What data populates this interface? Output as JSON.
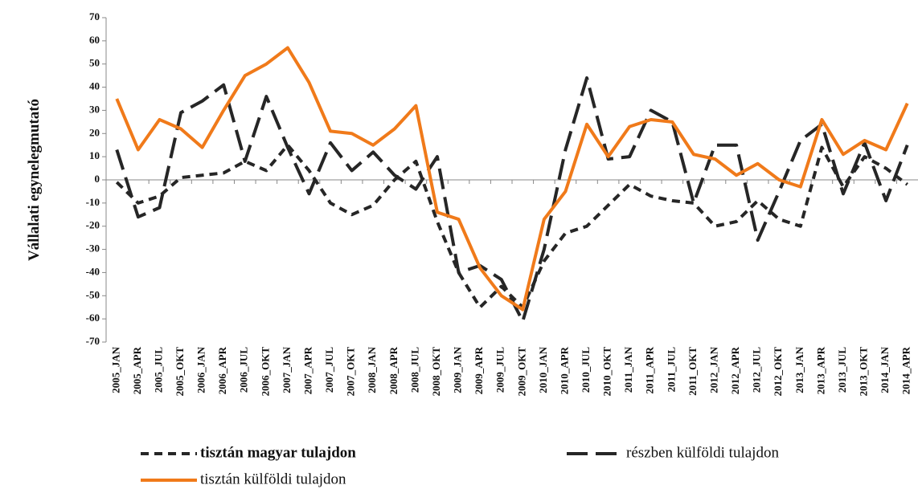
{
  "chart_data": {
    "type": "line",
    "y_label": "Vállalati egynelegmutató",
    "categories": [
      "2005_JAN",
      "2005_APR",
      "2005_JUL",
      "2005_OKT",
      "2006_JAN",
      "2006_APR",
      "2006_JUL",
      "2006_OKT",
      "2007_JAN",
      "2007_APR",
      "2007_JUL",
      "2007_OKT",
      "2008_JAN",
      "2008_APR",
      "2008_JUL",
      "2008_OKT",
      "2009_JAN",
      "2009_APR",
      "2009_JUL",
      "2009_OKT",
      "2010_JAN",
      "2010_APR",
      "2010_JUL",
      "2010_OKT",
      "2011_JAN",
      "2011_APR",
      "2011_JUL",
      "2011_OKT",
      "2012_JAN",
      "2012_APR",
      "2012_JUL",
      "2012_OKT",
      "2013_JAN",
      "2013_APR",
      "2013_JUL",
      "2013_OKT",
      "2014_JAN",
      "2014_APR"
    ],
    "series": [
      {
        "name": "tisztán magyar tulajdon",
        "color": "#262626",
        "values": [
          -1,
          -10,
          -7,
          1,
          2,
          3,
          8,
          4,
          15,
          4,
          -10,
          -15,
          -11,
          0,
          8,
          -18,
          -40,
          -55,
          -46,
          -55,
          -35,
          -23,
          -20,
          -11,
          -2,
          -7,
          -9,
          -10,
          -20,
          -18,
          -9,
          -17,
          -20,
          14,
          -3,
          10,
          5,
          -2
        ]
      },
      {
        "name": "részben külföldi tulajdon",
        "color": "#262626",
        "values": [
          13,
          -16,
          -12,
          29,
          34,
          41,
          8,
          36,
          14,
          -6,
          16,
          4,
          12,
          2,
          -4,
          10,
          -40,
          -37,
          -43,
          -61,
          -30,
          13,
          44,
          9,
          10,
          30,
          25,
          -10,
          15,
          15,
          -26,
          -5,
          17,
          24,
          -6,
          16,
          -9,
          15
        ]
      },
      {
        "name": "tisztán külföldi tulajdon",
        "color": "#f07a1a",
        "values": [
          35,
          13,
          26,
          22,
          14,
          30,
          45,
          50,
          57,
          42,
          21,
          20,
          15,
          22,
          32,
          -14,
          -17,
          -38,
          -50,
          -56,
          -17,
          -5,
          24,
          10,
          23,
          26,
          25,
          11,
          9,
          2,
          7,
          0,
          -3,
          26,
          11,
          17,
          13,
          33
        ]
      }
    ],
    "ylim": [
      -70,
      70
    ],
    "yticks": [
      -70,
      -60,
      -50,
      -40,
      -30,
      -20,
      -10,
      0,
      10,
      20,
      30,
      40,
      50,
      60,
      70
    ]
  }
}
